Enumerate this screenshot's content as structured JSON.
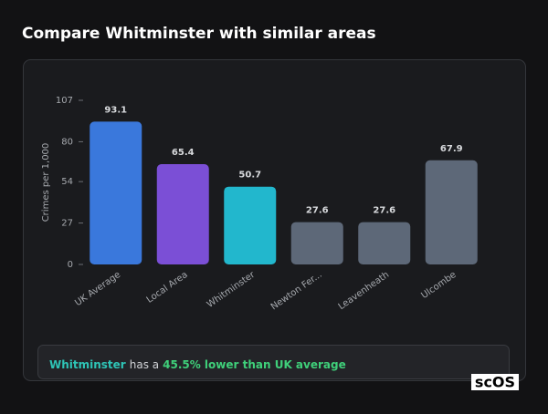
{
  "header": {
    "title": "Compare Whitminster with similar areas"
  },
  "chart_data": {
    "type": "bar",
    "y_label": "Crimes per 1,000",
    "categories": [
      "UK Average",
      "Local Area",
      "Whitminster",
      "Newton Fer...",
      "Leavenheath",
      "Ulcombe"
    ],
    "values": [
      93.1,
      65.4,
      50.7,
      27.6,
      27.6,
      67.9
    ],
    "colors": [
      "#3a78dc",
      "#7b4fd6",
      "#22b7cd",
      "#5d6878",
      "#5d6878",
      "#5d6878"
    ],
    "ylim": [
      0,
      107
    ],
    "yticks": [
      0,
      27,
      54,
      80,
      107
    ],
    "grid": false
  },
  "summary": {
    "area": "Whitminster",
    "text": "has a",
    "highlight": "45.5% lower than UK average"
  },
  "logo": "scOS"
}
